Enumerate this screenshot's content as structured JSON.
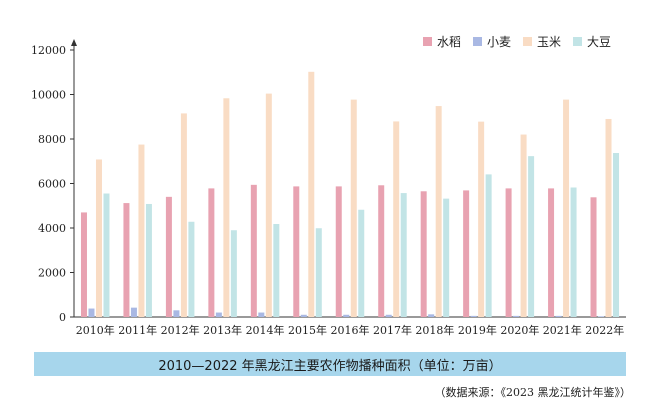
{
  "chart_data": {
    "type": "bar",
    "title": "",
    "xlabel": "",
    "ylabel": "",
    "ylim": [
      0,
      12000
    ],
    "yticks": [
      0,
      2000,
      4000,
      6000,
      8000,
      10000,
      12000
    ],
    "legend_position": "top-right",
    "grid": false,
    "categories": [
      "2010年",
      "2011年",
      "2012年",
      "2013年",
      "2014年",
      "2015年",
      "2016年",
      "2017年",
      "2018年",
      "2019年",
      "2020年",
      "2021年",
      "2022年"
    ],
    "series": [
      {
        "name": "水稻",
        "color": "#e8a2b1",
        "values": [
          4700,
          5120,
          5400,
          5780,
          5940,
          5870,
          5870,
          5920,
          5650,
          5690,
          5780,
          5780,
          5380
        ]
      },
      {
        "name": "小麦",
        "color": "#a9b8e3",
        "values": [
          380,
          420,
          300,
          200,
          200,
          100,
          100,
          100,
          120,
          50,
          50,
          50,
          30
        ]
      },
      {
        "name": "玉米",
        "color": "#f9dcc4",
        "values": [
          7080,
          7750,
          9150,
          9830,
          10040,
          11020,
          9770,
          8790,
          9480,
          8780,
          8200,
          9770,
          8900
        ]
      },
      {
        "name": "大豆",
        "color": "#c2e4e6",
        "values": [
          5550,
          5080,
          4280,
          3900,
          4180,
          3990,
          4820,
          5570,
          5320,
          6410,
          7230,
          5820,
          7370
        ]
      }
    ]
  },
  "caption": "2010—2022 年黑龙江主要农作物播种面积（单位：万亩）",
  "source_note": "（数据来源：《2023 黑龙江统计年鉴》）"
}
